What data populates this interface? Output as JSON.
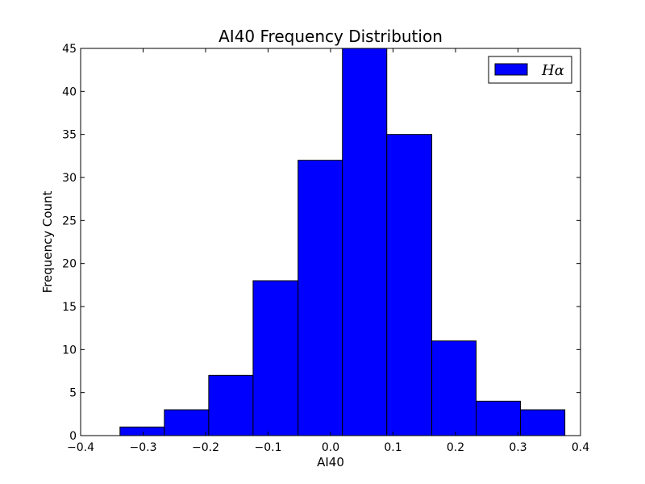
{
  "chart_data": {
    "type": "bar",
    "title": "AI40 Frequency Distribution",
    "xlabel": "AI40",
    "ylabel": "Frequency Count",
    "xlim": [
      -0.4,
      0.4
    ],
    "ylim": [
      0,
      45
    ],
    "xticks": [
      -0.4,
      -0.3,
      -0.2,
      -0.1,
      0.0,
      0.1,
      0.2,
      0.3,
      0.4
    ],
    "xtick_labels": [
      "−0.4",
      "−0.3",
      "−0.2",
      "−0.1",
      "0.0",
      "0.1",
      "0.2",
      "0.3",
      "0.4"
    ],
    "yticks": [
      0,
      5,
      10,
      15,
      20,
      25,
      30,
      35,
      40,
      45
    ],
    "ytick_labels": [
      "0",
      "5",
      "10",
      "15",
      "20",
      "25",
      "30",
      "35",
      "40",
      "45"
    ],
    "bin_edges": [
      -0.337,
      -0.266,
      -0.195,
      -0.124,
      -0.052,
      0.019,
      0.09,
      0.162,
      0.233,
      0.304,
      0.375
    ],
    "series": [
      {
        "name": "Hα",
        "values": [
          1,
          3,
          7,
          18,
          32,
          45,
          35,
          11,
          4,
          3
        ],
        "color": "#0000ff"
      }
    ],
    "grid": false,
    "legend_position": "top-right"
  }
}
